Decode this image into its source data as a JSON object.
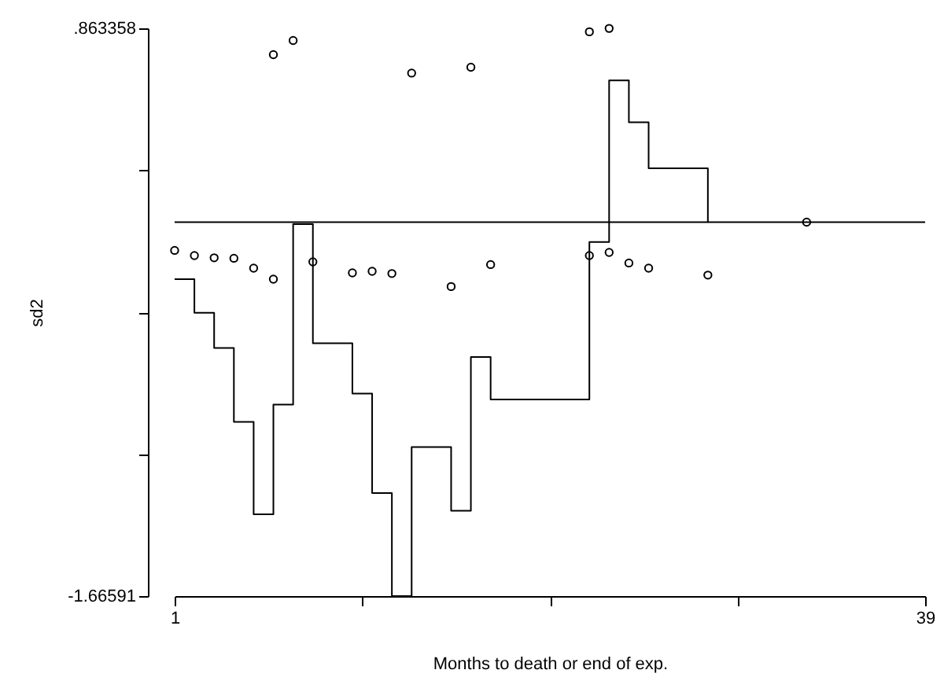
{
  "chart_data": {
    "type": "scatter",
    "xlabel": "Months to death or end of exp.",
    "ylabel": "sd2",
    "xlim": [
      1,
      39
    ],
    "xticks": [
      1,
      {
        "value": 10.5,
        "label": null
      },
      {
        "value": 20,
        "label": null
      },
      {
        "value": 29.5,
        "label": null
      },
      39
    ],
    "ylim": [
      -1.66591,
      0.863358
    ],
    "yticks": [
      {
        "value": -1.66591,
        "label": "-1.66591"
      },
      {
        "value": -1.033593,
        "label": null
      },
      {
        "value": -0.401276,
        "label": null
      },
      {
        "value": 0.231041,
        "label": null
      },
      {
        "value": 0.863358,
        "label": ".863358"
      }
    ],
    "grid": false,
    "ref_lines": [
      {
        "axis": "y",
        "value": 0,
        "color": "#000000"
      }
    ],
    "series": [
      {
        "marker": "circle",
        "color": "#000000",
        "x": [
          1,
          2,
          3,
          4,
          5,
          6,
          6,
          7,
          8,
          10,
          11,
          12,
          13,
          15,
          16,
          17,
          22,
          23,
          22,
          23,
          24,
          25,
          28,
          33
        ],
        "values": [
          -0.126,
          -0.149,
          -0.159,
          -0.161,
          -0.205,
          -0.254,
          0.746,
          0.809,
          -0.177,
          -0.226,
          -0.219,
          -0.229,
          0.664,
          -0.287,
          0.69,
          -0.189,
          0.848,
          0.863,
          -0.149,
          -0.135,
          -0.182,
          -0.205,
          -0.236,
          0
        ]
      },
      {
        "type": "step",
        "marker": "none",
        "color": "#000000",
        "x": [
          1,
          2,
          3,
          4,
          5,
          6,
          7,
          8,
          10,
          11,
          12,
          13,
          15,
          16,
          17,
          22,
          23,
          24,
          25,
          28
        ],
        "values": [
          -0.254,
          -0.404,
          -0.561,
          -0.89,
          -1.302,
          -0.813,
          -0.009,
          -0.54,
          -0.764,
          -1.207,
          -1.66591,
          -1.002,
          -1.286,
          -0.601,
          -0.79,
          -0.089,
          0.631,
          0.445,
          0.24,
          0
        ]
      }
    ]
  }
}
